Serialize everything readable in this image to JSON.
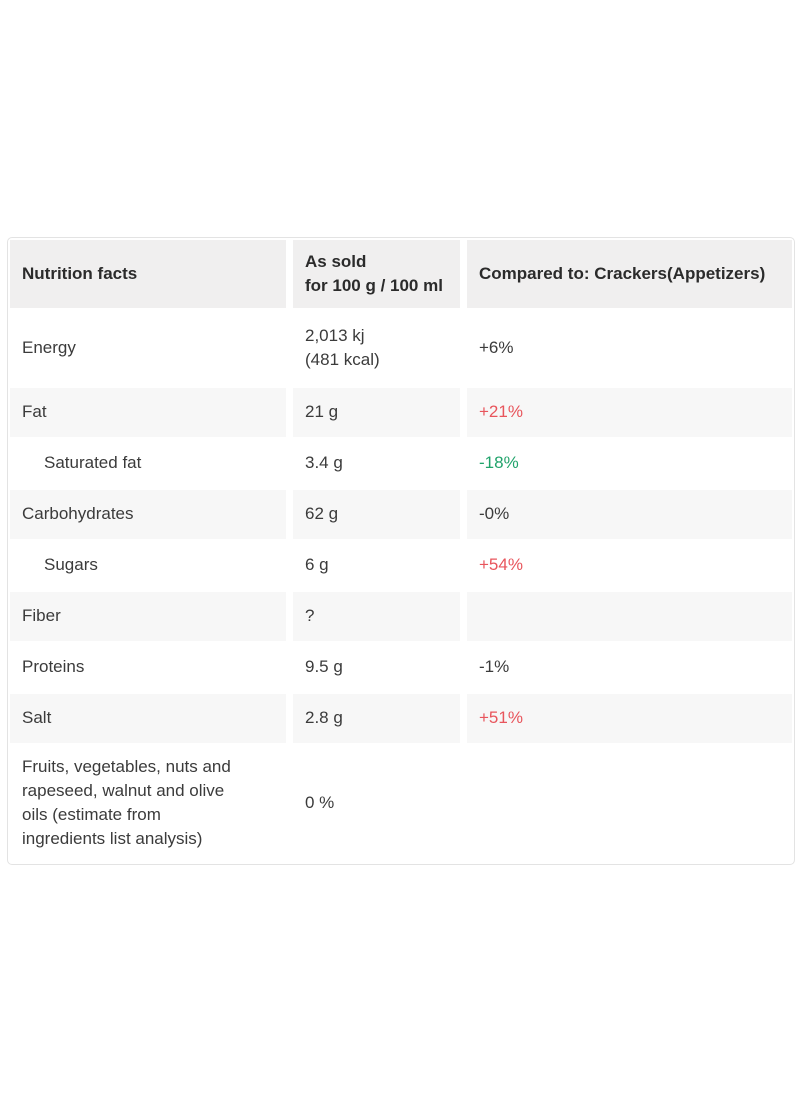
{
  "colors": {
    "increase_red": "#e8555c",
    "decrease_green": "#21a36b",
    "header_bg": "#f0efef",
    "row_alt_bg": "#f7f7f7",
    "border": "#e3e3e3"
  },
  "table": {
    "columns": [
      {
        "label": "Nutrition facts"
      },
      {
        "label": "As sold\nfor 100 g / 100 ml"
      },
      {
        "label": "Compared to: Crackers(Appetizers)"
      }
    ],
    "rows": [
      {
        "label": "Energy",
        "value": "2,013 kj\n(481 kcal)",
        "comparison": "+6%",
        "trend": "neutral",
        "indent": false
      },
      {
        "label": "Fat",
        "value": "21 g",
        "comparison": "+21%",
        "trend": "bad",
        "indent": false
      },
      {
        "label": "Saturated fat",
        "value": "3.4 g",
        "comparison": "-18%",
        "trend": "good",
        "indent": true
      },
      {
        "label": "Carbohydrates",
        "value": "62 g",
        "comparison": "-0%",
        "trend": "neutral",
        "indent": false
      },
      {
        "label": "Sugars",
        "value": "6 g",
        "comparison": "+54%",
        "trend": "bad",
        "indent": true
      },
      {
        "label": "Fiber",
        "value": "?",
        "comparison": "",
        "trend": "none",
        "indent": false
      },
      {
        "label": "Proteins",
        "value": "9.5 g",
        "comparison": "-1%",
        "trend": "neutral",
        "indent": false
      },
      {
        "label": "Salt",
        "value": "2.8 g",
        "comparison": "+51%",
        "trend": "bad",
        "indent": false
      },
      {
        "label": "Fruits, vegetables, nuts and\nrapeseed, walnut and olive\noils (estimate from\ningredients list analysis)",
        "value": "0 %",
        "comparison": "",
        "trend": "none",
        "indent": false
      }
    ]
  }
}
